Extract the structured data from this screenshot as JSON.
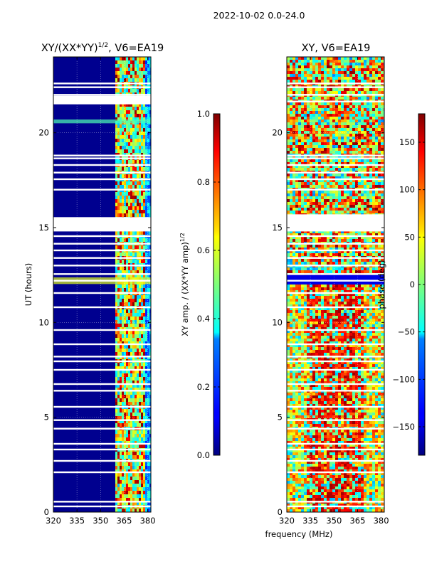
{
  "figure_title": "2022-10-02 0.0-24.0",
  "shared_xlabel": "frequency (MHz)",
  "chart_data": [
    {
      "type": "heatmap",
      "title": "XY/(XX*YY)^{1/2}, V6=EA19",
      "title_parts": {
        "base": "XY/(XX*YY)",
        "sup": "1/2",
        "rest": ", V6=EA19"
      },
      "ylabel": "UT (hours)",
      "xlim": [
        320,
        382
      ],
      "ylim": [
        0,
        24
      ],
      "xticks": [
        320,
        335,
        350,
        365,
        380
      ],
      "yticks": [
        0,
        5,
        10,
        15,
        20
      ],
      "colorbar": {
        "label": "XY amp. / (XX*YY amp)^{1/2}",
        "label_parts": {
          "base": "XY amp. / (XX*YY amp)",
          "sup": "1/2"
        },
        "range": [
          0.0,
          1.0
        ],
        "ticks": [
          0.0,
          0.2,
          0.4,
          0.6,
          0.8,
          1.0
        ],
        "tick_labels": [
          "0.0",
          "0.2",
          "0.4",
          "0.6",
          "0.8",
          "1.0"
        ],
        "colormap": "jet"
      }
    },
    {
      "type": "heatmap",
      "title": "XY, V6=EA19",
      "xlim": [
        320,
        382
      ],
      "ylim": [
        0,
        24
      ],
      "xticks": [
        320,
        335,
        350,
        365,
        380
      ],
      "yticks": [
        0,
        5,
        10,
        15,
        20
      ],
      "colorbar": {
        "label": "phase (deg)",
        "range": [
          -180,
          180
        ],
        "ticks": [
          -150,
          -100,
          -50,
          0,
          50,
          100,
          150
        ],
        "tick_labels": [
          "−150",
          "−100",
          "−50",
          "0",
          "50",
          "100",
          "150"
        ],
        "colormap": "jet"
      }
    }
  ]
}
